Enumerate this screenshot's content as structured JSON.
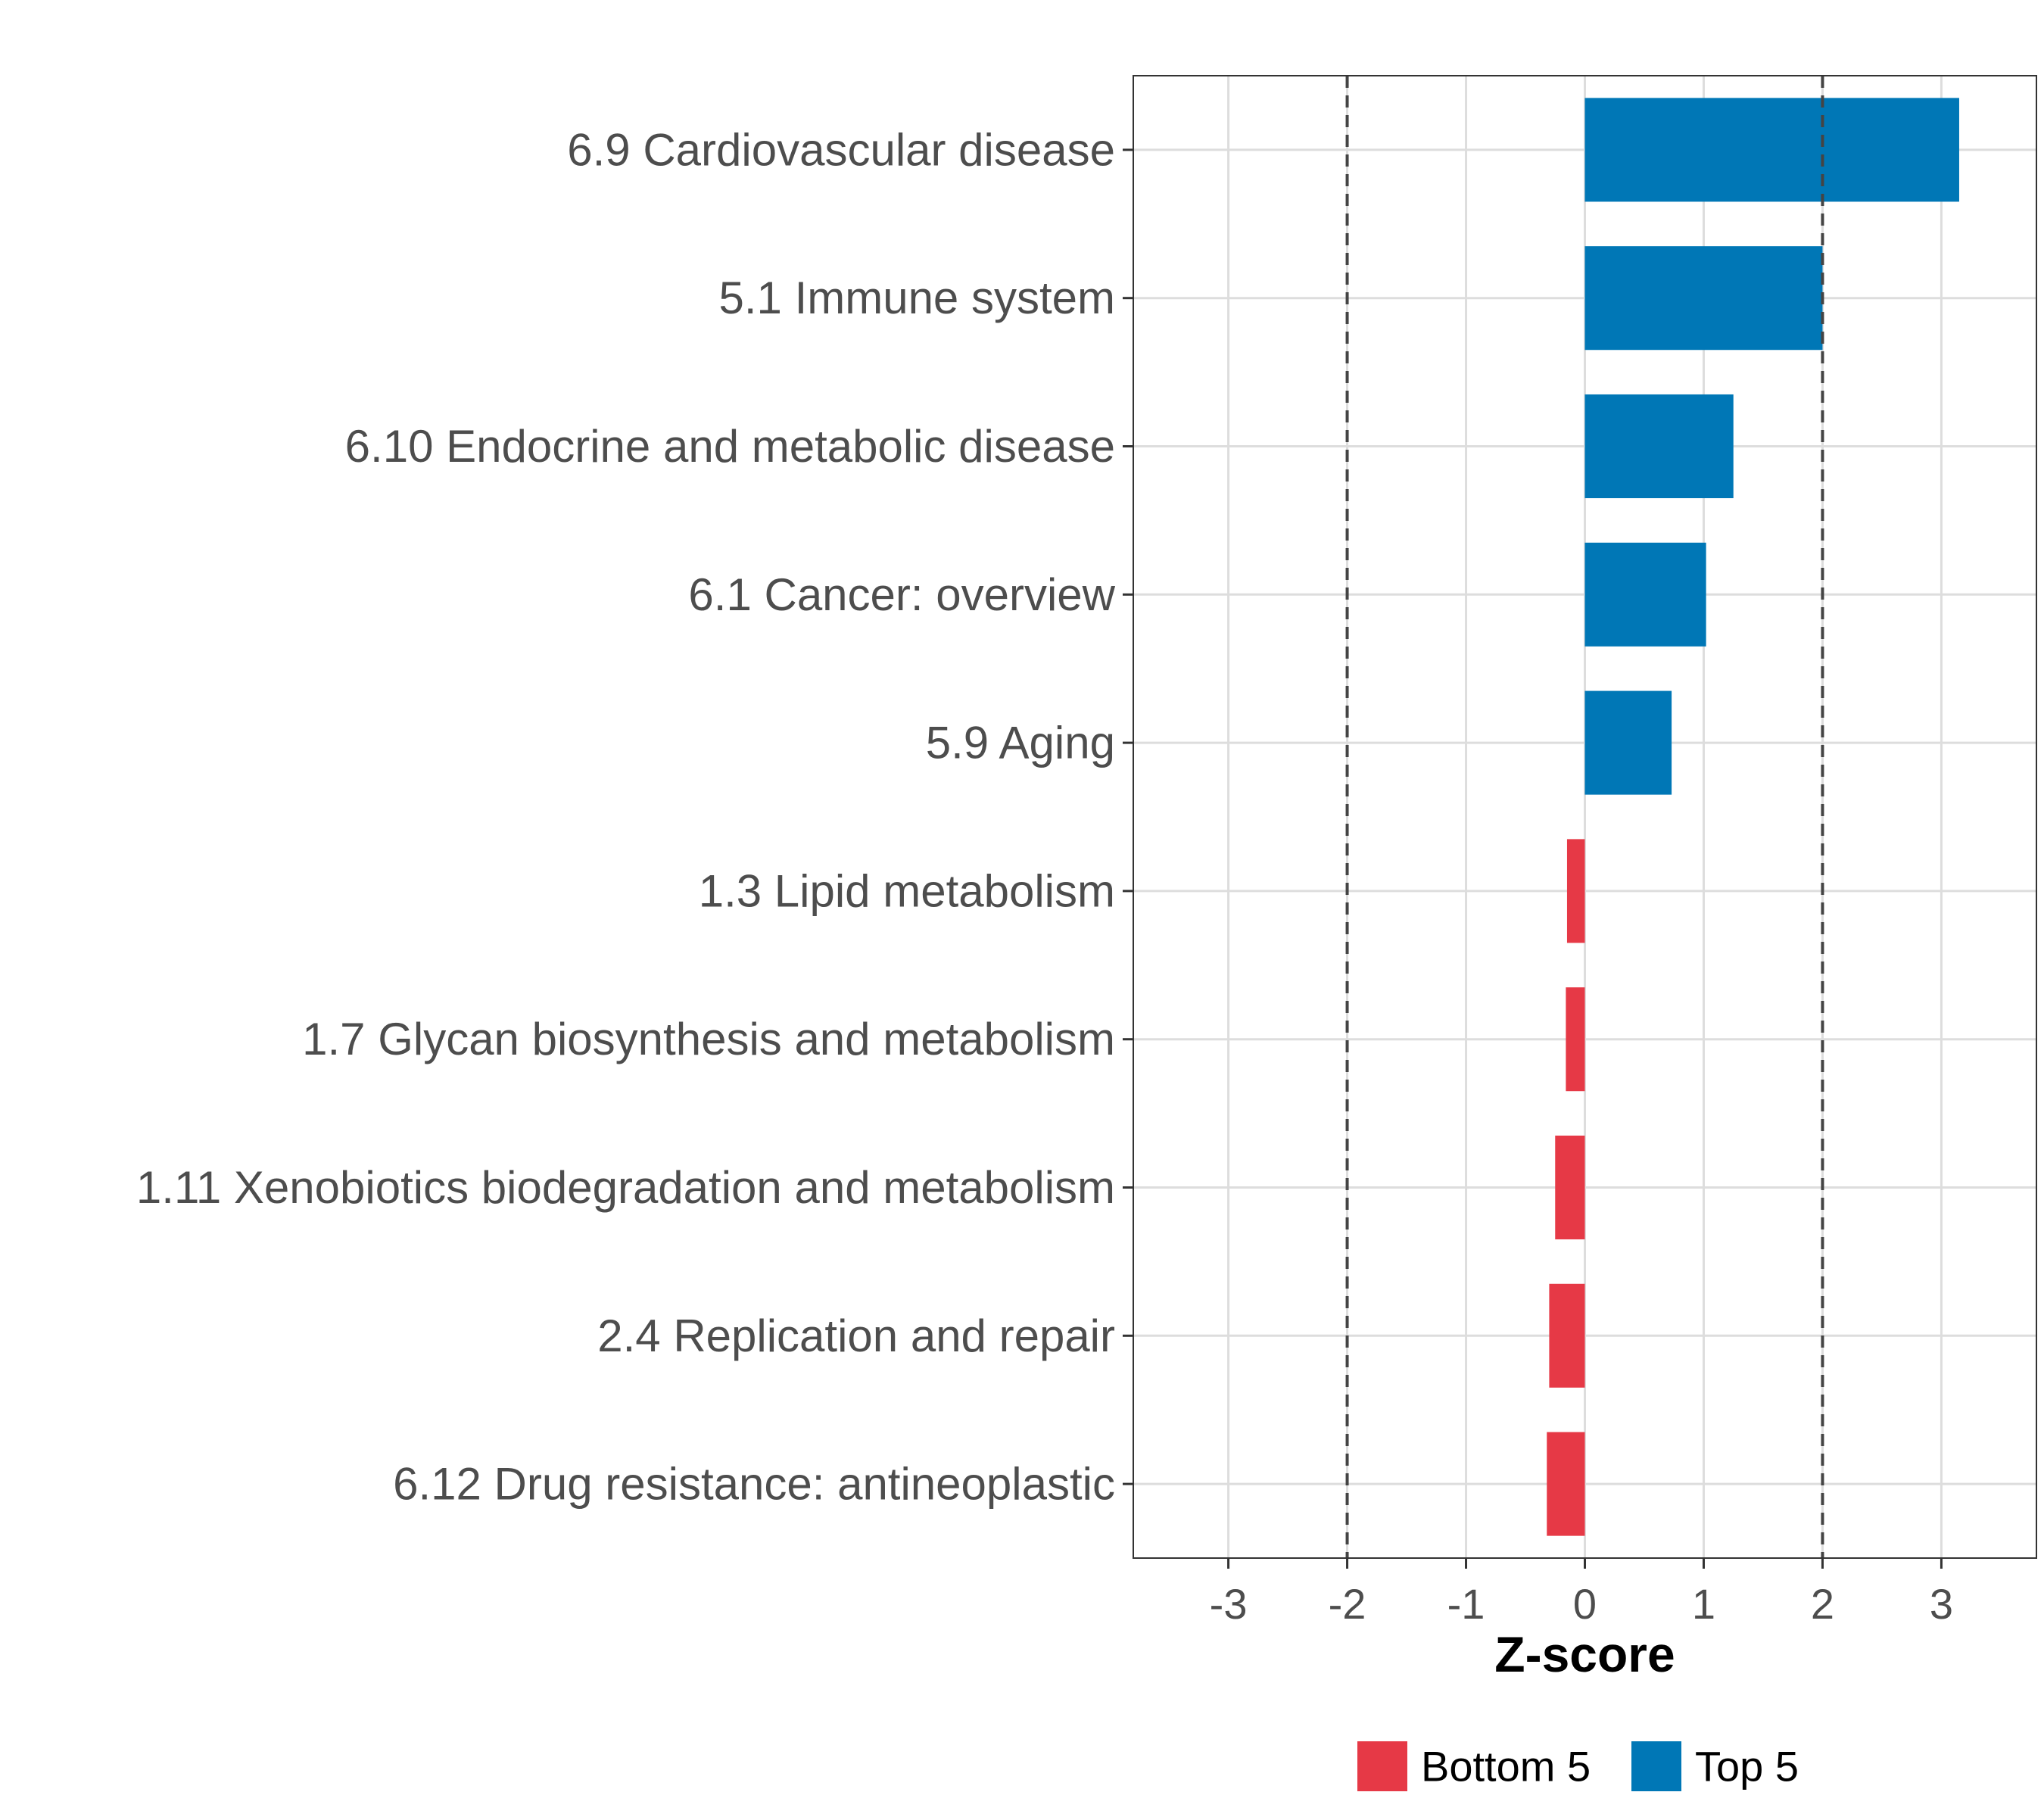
{
  "chart_data": {
    "type": "bar",
    "orientation": "horizontal",
    "title": "",
    "xlabel": "Z-score",
    "ylabel": "",
    "xlim": [
      -3.8,
      3.8
    ],
    "xticks": [
      -3,
      -2,
      -1,
      0,
      1,
      2,
      3
    ],
    "reference_lines": [
      -2,
      2
    ],
    "grid": true,
    "categories": [
      "6.9 Cardiovascular disease",
      "5.1 Immune system",
      "6.10 Endocrine and metabolic disease",
      "6.1 Cancer: overview",
      "5.9 Aging",
      "1.3 Lipid metabolism",
      "1.7 Glycan biosynthesis and metabolism",
      "1.11 Xenobiotics biodegradation and metabolism",
      "2.4 Replication and repair",
      "6.12 Drug resistance: antineoplastic"
    ],
    "values": [
      3.15,
      2.0,
      1.25,
      1.02,
      0.73,
      -0.15,
      -0.16,
      -0.25,
      -0.3,
      -0.32
    ],
    "groups": [
      "Top 5",
      "Top 5",
      "Top 5",
      "Top 5",
      "Top 5",
      "Bottom 5",
      "Bottom 5",
      "Bottom 5",
      "Bottom 5",
      "Bottom 5"
    ],
    "legend": {
      "placement": "bottom",
      "entries": [
        {
          "name": "Bottom 5",
          "color": "#E63946"
        },
        {
          "name": "Top 5",
          "color": "#0077B6"
        }
      ]
    }
  }
}
